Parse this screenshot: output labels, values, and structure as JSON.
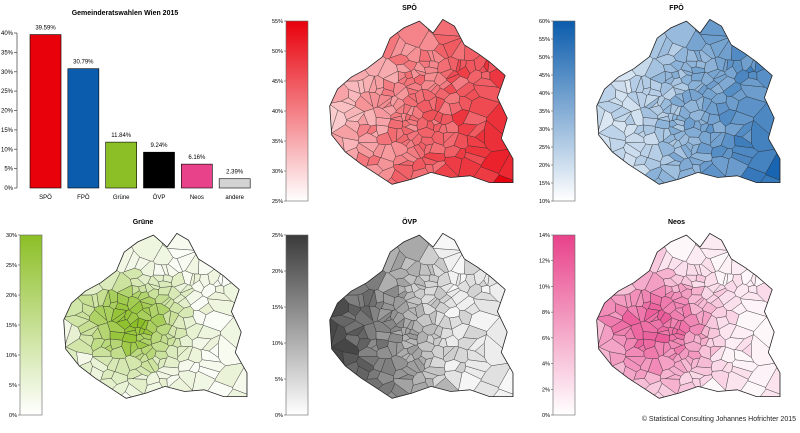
{
  "chart_data": [
    {
      "type": "bar",
      "title": "Gemeinderatswahlen Wien 2015",
      "categories": [
        "SPÖ",
        "FPÖ",
        "Grüne",
        "ÖVP",
        "Neos",
        "andere"
      ],
      "values": [
        39.59,
        30.79,
        11.84,
        9.24,
        6.16,
        2.39
      ],
      "value_labels": [
        "39.59%",
        "30.79%",
        "11.84%",
        "9.24%",
        "6.16%",
        "2.39%"
      ],
      "colors": [
        "#e8000b",
        "#0b5cac",
        "#8cbf26",
        "#000000",
        "#e8428a",
        "#d3d3d3"
      ],
      "ylim": [
        0,
        40
      ],
      "yticks": [
        "0%",
        "5%",
        "10%",
        "15%",
        "20%",
        "25%",
        "30%",
        "35%",
        "40%"
      ],
      "xlabel": "",
      "ylabel": ""
    },
    {
      "type": "heatmap",
      "title": "SPÖ",
      "color": "#e8000b",
      "legend_range": [
        25,
        55
      ],
      "legend_ticks": [
        "25%",
        "30%",
        "35%",
        "40%",
        "45%",
        "50%",
        "55%"
      ]
    },
    {
      "type": "heatmap",
      "title": "FPÖ",
      "color": "#0b5cac",
      "legend_range": [
        10,
        60
      ],
      "legend_ticks": [
        "10%",
        "15%",
        "20%",
        "25%",
        "30%",
        "35%",
        "40%",
        "45%",
        "50%",
        "55%",
        "60%"
      ]
    },
    {
      "type": "heatmap",
      "title": "Grüne",
      "color": "#8cbf26",
      "legend_range": [
        0,
        30
      ],
      "legend_ticks": [
        "0%",
        "5%",
        "10%",
        "15%",
        "20%",
        "25%",
        "30%"
      ]
    },
    {
      "type": "heatmap",
      "title": "ÖVP",
      "color": "#3a3a3a",
      "legend_range": [
        0,
        25
      ],
      "legend_ticks": [
        "0%",
        "5%",
        "10%",
        "15%",
        "20%",
        "25%"
      ]
    },
    {
      "type": "heatmap",
      "title": "Neos",
      "color": "#e8428a",
      "legend_range": [
        0,
        14
      ],
      "legend_ticks": [
        "0%",
        "2%",
        "4%",
        "6%",
        "8%",
        "10%",
        "12%",
        "14%"
      ]
    }
  ],
  "footer": {
    "copyright": "© Statistical Consulting Johannes Hofrichter 2015"
  }
}
